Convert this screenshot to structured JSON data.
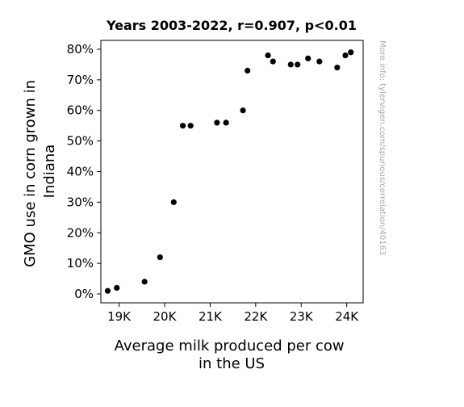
{
  "chart_data": {
    "type": "scatter",
    "title": "Years 2003-2022, r=0.907, p<0.01",
    "xlabel": "Average milk produced per cow in the US",
    "xlabel_lines": [
      "Average milk produced per cow",
      "in the US"
    ],
    "ylabel": "GMO use in corn grown in Indiana",
    "ylabel_lines": [
      "GMO use in corn grown in",
      "Indiana"
    ],
    "watermark": "More info: tylervigen.com/spurious/correlation/40163",
    "xlim": [
      18600,
      24360
    ],
    "ylim": [
      -2.9,
      82.9
    ],
    "x_ticks": [
      {
        "value": 19000,
        "label": "19K"
      },
      {
        "value": 20000,
        "label": "20K"
      },
      {
        "value": 21000,
        "label": "21K"
      },
      {
        "value": 22000,
        "label": "22K"
      },
      {
        "value": 23000,
        "label": "23K"
      },
      {
        "value": 24000,
        "label": "24K"
      }
    ],
    "y_ticks": [
      {
        "value": 0,
        "label": "0%"
      },
      {
        "value": 10,
        "label": "10%"
      },
      {
        "value": 20,
        "label": "20%"
      },
      {
        "value": 30,
        "label": "30%"
      },
      {
        "value": 40,
        "label": "40%"
      },
      {
        "value": 50,
        "label": "50%"
      },
      {
        "value": 60,
        "label": "60%"
      },
      {
        "value": 70,
        "label": "70%"
      },
      {
        "value": 80,
        "label": "80%"
      }
    ],
    "grid": false,
    "legend": false,
    "marker_color": "#000000",
    "points": [
      {
        "x": 18750,
        "y": 1
      },
      {
        "x": 18950,
        "y": 2
      },
      {
        "x": 19560,
        "y": 4
      },
      {
        "x": 19900,
        "y": 12
      },
      {
        "x": 20200,
        "y": 30
      },
      {
        "x": 20400,
        "y": 55
      },
      {
        "x": 20570,
        "y": 55
      },
      {
        "x": 21150,
        "y": 56
      },
      {
        "x": 21350,
        "y": 56
      },
      {
        "x": 21720,
        "y": 60
      },
      {
        "x": 21820,
        "y": 73
      },
      {
        "x": 22270,
        "y": 78
      },
      {
        "x": 22380,
        "y": 76
      },
      {
        "x": 22770,
        "y": 75
      },
      {
        "x": 22920,
        "y": 75
      },
      {
        "x": 23150,
        "y": 77
      },
      {
        "x": 23400,
        "y": 76
      },
      {
        "x": 23790,
        "y": 74
      },
      {
        "x": 23970,
        "y": 78
      },
      {
        "x": 24090,
        "y": 79
      }
    ]
  }
}
